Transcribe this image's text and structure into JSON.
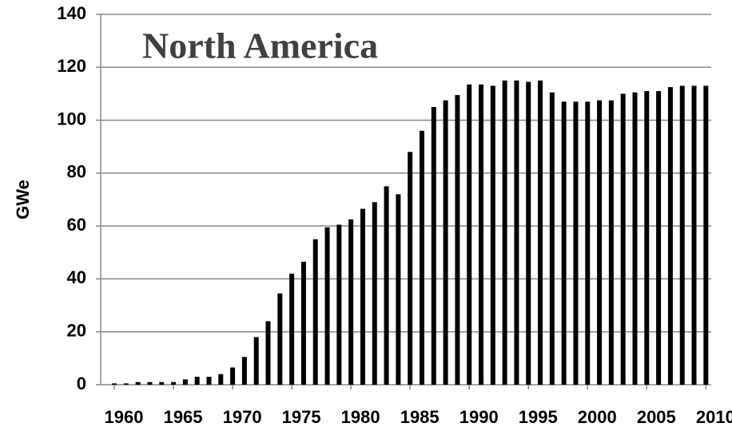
{
  "chart_data": {
    "type": "bar",
    "title": "North America",
    "ylabel": "GWe",
    "x": [
      1960,
      1961,
      1962,
      1963,
      1964,
      1965,
      1966,
      1967,
      1968,
      1969,
      1970,
      1971,
      1972,
      1973,
      1974,
      1975,
      1976,
      1977,
      1978,
      1979,
      1980,
      1981,
      1982,
      1983,
      1984,
      1985,
      1986,
      1987,
      1988,
      1989,
      1990,
      1991,
      1992,
      1993,
      1994,
      1995,
      1996,
      1997,
      1998,
      1999,
      2000,
      2001,
      2002,
      2003,
      2004,
      2005,
      2006,
      2007,
      2008,
      2009,
      2010
    ],
    "values": [
      0.5,
      0.5,
      1,
      1,
      1,
      1,
      2,
      3,
      3,
      4,
      6.5,
      10.5,
      18,
      24,
      34.5,
      42,
      46.5,
      55,
      59.5,
      60.5,
      62.5,
      66.5,
      69,
      75,
      72,
      88,
      96,
      105,
      107.5,
      109.5,
      113.5,
      113.5,
      113,
      115,
      115,
      114.5,
      115,
      110.5,
      107,
      107,
      107,
      107.5,
      107.5,
      110,
      110.5,
      111,
      111,
      112.5,
      113,
      113,
      113
    ],
    "color": "#000000",
    "xlim": [
      1958.85,
      2010.45
    ],
    "xticks": [
      1960,
      1965,
      1970,
      1975,
      1980,
      1985,
      1990,
      1995,
      2000,
      2005,
      2010
    ],
    "ylim": [
      0,
      140
    ],
    "yticks": [
      0,
      20,
      40,
      60,
      80,
      100,
      120,
      140
    ],
    "grid": true
  }
}
